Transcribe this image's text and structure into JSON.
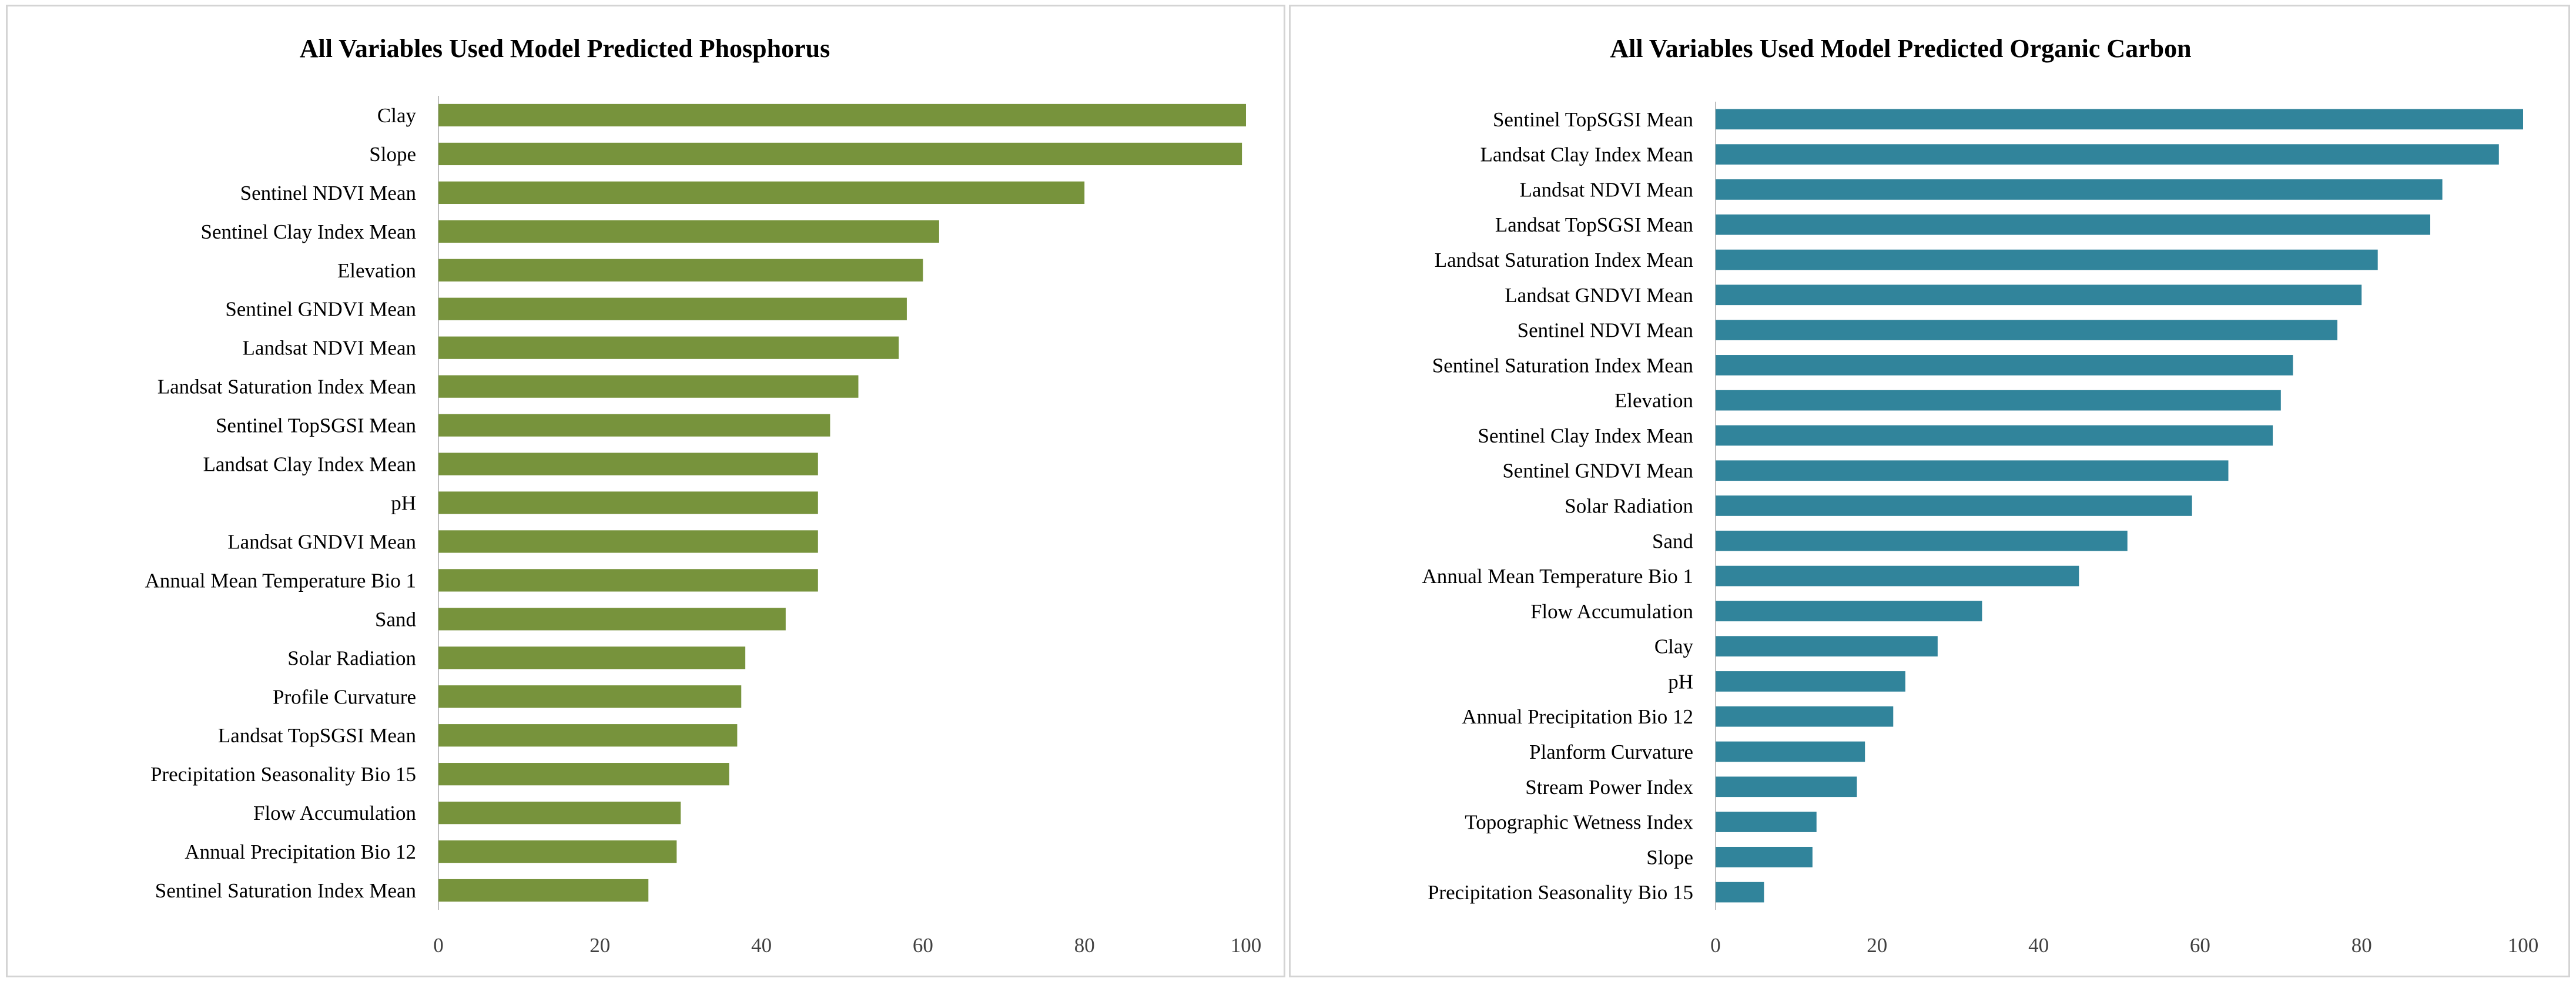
{
  "chart_data": [
    {
      "type": "bar",
      "orientation": "horizontal",
      "title": "All Variables Used Model Predicted Phosphorus",
      "xlabel": "",
      "ylabel": "",
      "xlim": [
        0,
        100
      ],
      "xticks": [
        "0",
        "20",
        "40",
        "60",
        "80",
        "100"
      ],
      "color": "#77933c",
      "categories": [
        "Sentinel Saturation Index Mean",
        "Annual Precipitation Bio 12",
        "Flow Accumulation",
        "Precipitation Seasonality Bio 15",
        "Landsat TopSGSI Mean",
        "Profile Curvature",
        "Solar Radiation",
        "Sand",
        "Annual Mean Temperature Bio 1",
        "Landsat GNDVI Mean",
        "pH",
        "Landsat Clay Index Mean",
        "Sentinel TopSGSI Mean",
        "Landsat Saturation Index Mean",
        "Landsat NDVI Mean",
        "Sentinel GNDVI Mean",
        "Elevation",
        "Sentinel Clay Index Mean",
        "Sentinel NDVI Mean",
        "Slope",
        "Clay"
      ],
      "values": [
        26,
        29.5,
        30,
        36,
        37,
        37.5,
        38,
        43,
        47,
        47,
        47,
        47,
        48.5,
        52,
        57,
        58,
        60,
        62,
        80,
        99.5,
        100
      ]
    },
    {
      "type": "bar",
      "orientation": "horizontal",
      "title": "All Variables Used Model Predicted Organic Carbon",
      "xlabel": "",
      "ylabel": "",
      "xlim": [
        0,
        100
      ],
      "xticks": [
        "0",
        "20",
        "40",
        "60",
        "80",
        "100"
      ],
      "color": "#31849b",
      "categories": [
        "Precipitation Seasonality Bio 15",
        "Slope",
        "Topographic Wetness Index",
        "Stream Power Index",
        "Planform Curvature",
        "Annual Precipitation Bio 12",
        "pH",
        "Clay",
        "Flow Accumulation",
        "Annual Mean Temperature Bio 1",
        "Sand",
        "Solar Radiation",
        "Sentinel GNDVI Mean",
        "Sentinel Clay Index Mean",
        "Elevation",
        "Sentinel Saturation Index Mean",
        "Sentinel NDVI Mean",
        "Landsat GNDVI Mean",
        "Landsat Saturation Index Mean",
        "Landsat TopSGSI Mean",
        "Landsat NDVI Mean",
        "Landsat Clay Index Mean",
        "Sentinel TopSGSI Mean"
      ],
      "values": [
        6,
        12,
        12.5,
        17.5,
        18.5,
        22,
        23.5,
        27.5,
        33,
        45,
        51,
        59,
        63.5,
        69,
        70,
        71.5,
        77,
        80,
        82,
        88.5,
        90,
        97,
        100
      ]
    }
  ]
}
